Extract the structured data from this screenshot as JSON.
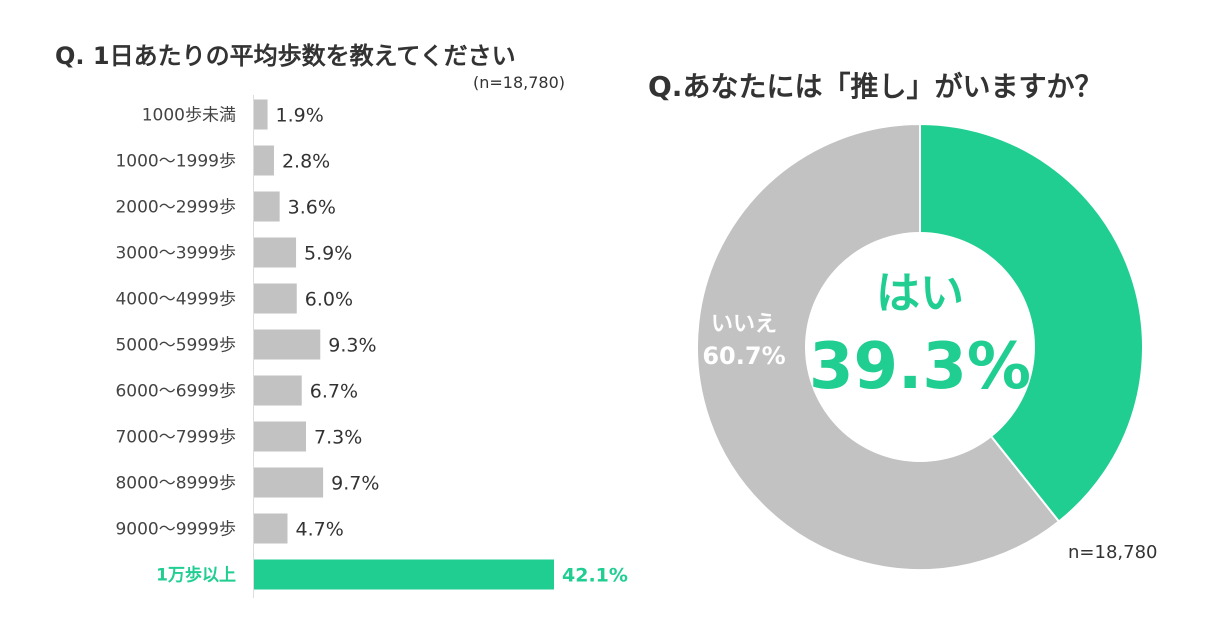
{
  "chart_data": [
    {
      "type": "bar",
      "orientation": "horizontal",
      "title": "Q. 1日あたりの平均歩数を教えてください",
      "sample_size": "(n=18,780)",
      "categories": [
        "1000歩未満",
        "1000〜1999歩",
        "2000〜2999歩",
        "3000〜3999歩",
        "4000〜4999歩",
        "5000〜5999歩",
        "6000〜6999歩",
        "7000〜7999歩",
        "8000〜8999歩",
        "9000〜9999歩",
        "1万歩以上"
      ],
      "values": [
        1.9,
        2.8,
        3.6,
        5.9,
        6.0,
        9.3,
        6.7,
        7.3,
        9.7,
        4.7,
        42.1
      ],
      "value_labels": [
        "1.9%",
        "2.8%",
        "3.6%",
        "5.9%",
        "6.0%",
        "9.3%",
        "6.7%",
        "7.3%",
        "9.7%",
        "4.7%",
        "42.1%"
      ],
      "highlight_index": 10,
      "unit": "%",
      "xlim": [
        0,
        42.1
      ]
    },
    {
      "type": "pie",
      "variant": "donut",
      "title": "Q.あなたには「推し」がいますか？",
      "sample_size": "n=18,780",
      "slices": [
        {
          "name": "はい",
          "value": 39.3,
          "label": "39.3%"
        },
        {
          "name": "いいえ",
          "value": 60.7,
          "label": "60.7%"
        }
      ]
    }
  ],
  "colors": {
    "accent": "#21CE91",
    "bar_gray": "#C2C2C2",
    "text": "#333333",
    "white": "#FFFFFF"
  }
}
